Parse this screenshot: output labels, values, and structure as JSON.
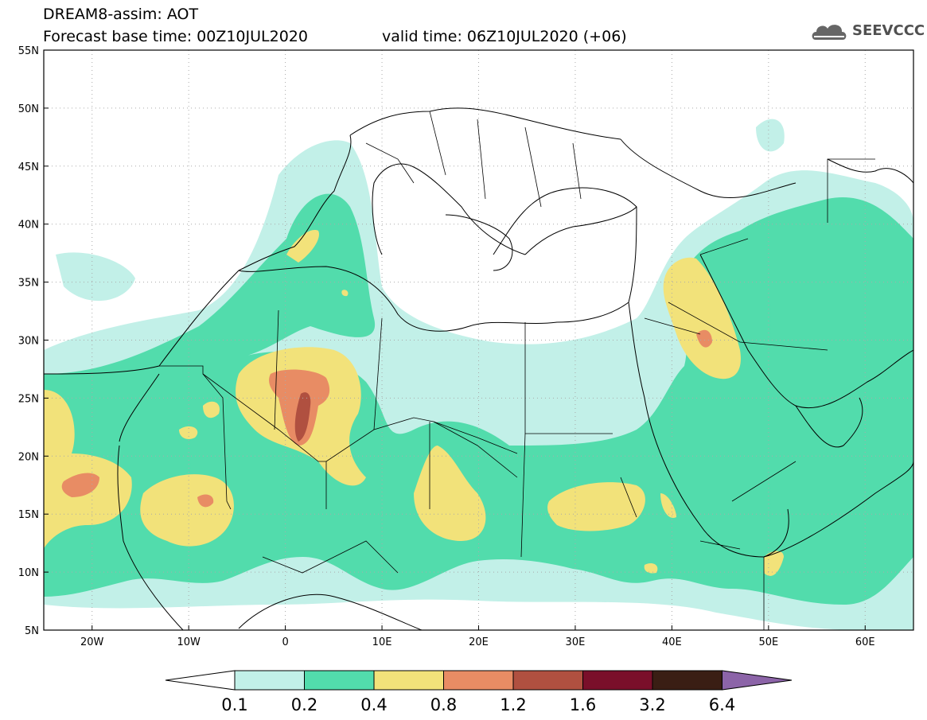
{
  "header": {
    "line1": "DREAM8-assim: AOT",
    "line2": "Forecast base time: 00Z10JUL2020",
    "valid": "valid time: 06Z10JUL2020 (+06)",
    "logo_text": "SEEVCCC"
  },
  "map": {
    "lon_range": [
      -25,
      65
    ],
    "lat_range": [
      5,
      55
    ],
    "lat_labels": [
      "5N",
      "10N",
      "15N",
      "20N",
      "25N",
      "30N",
      "35N",
      "40N",
      "45N",
      "50N",
      "55N"
    ],
    "lon_labels": [
      "20W",
      "10W",
      "0",
      "10E",
      "20E",
      "30E",
      "40E",
      "50E",
      "60E"
    ]
  },
  "colorbar": {
    "levels": [
      "0.1",
      "0.2",
      "0.4",
      "0.8",
      "1.2",
      "1.6",
      "3.2",
      "6.4"
    ],
    "colors": [
      "#c2f0e8",
      "#52dcac",
      "#f2e27a",
      "#e88c64",
      "#b05040",
      "#7a0f2a",
      "#3a1e14",
      "#8c64a8"
    ],
    "under_color": "#ffffff"
  }
}
